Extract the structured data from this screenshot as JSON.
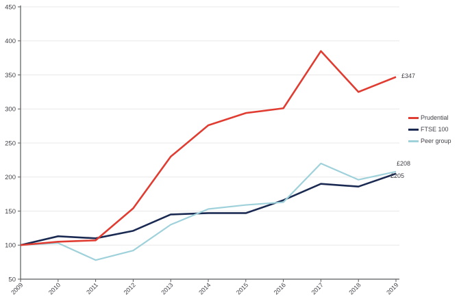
{
  "chart_data": {
    "type": "line",
    "x": [
      2009,
      2010,
      2011,
      2012,
      2013,
      2014,
      2015,
      2016,
      2017,
      2018,
      2019
    ],
    "series": [
      {
        "name": "Prudential",
        "color": "#e03c31",
        "end_label": "£347",
        "values": [
          100,
          105,
          107,
          154,
          230,
          276,
          294,
          301,
          385,
          325,
          347
        ]
      },
      {
        "name": "FTSE 100",
        "color": "#1a2a52",
        "end_label": "£205",
        "values": [
          100,
          113,
          110,
          121,
          145,
          147,
          147,
          166,
          190,
          186,
          205
        ]
      },
      {
        "name": "Peer group",
        "color": "#9fd1db",
        "end_label": "£208",
        "values": [
          100,
          103,
          78,
          92,
          130,
          153,
          159,
          163,
          220,
          196,
          208
        ]
      }
    ],
    "title": "",
    "xlabel": "",
    "ylabel": "",
    "ylim": [
      50,
      450
    ],
    "yticks": [
      50,
      100,
      150,
      200,
      250,
      300,
      350,
      400,
      450
    ],
    "grid": "horizontal",
    "legend_position": "right"
  },
  "colors": {
    "grid": "#e8e8e8",
    "axis": "#58595b",
    "tick_text": "#3f3f46",
    "label_text": "#3f3f46",
    "background": "#ffffff"
  }
}
